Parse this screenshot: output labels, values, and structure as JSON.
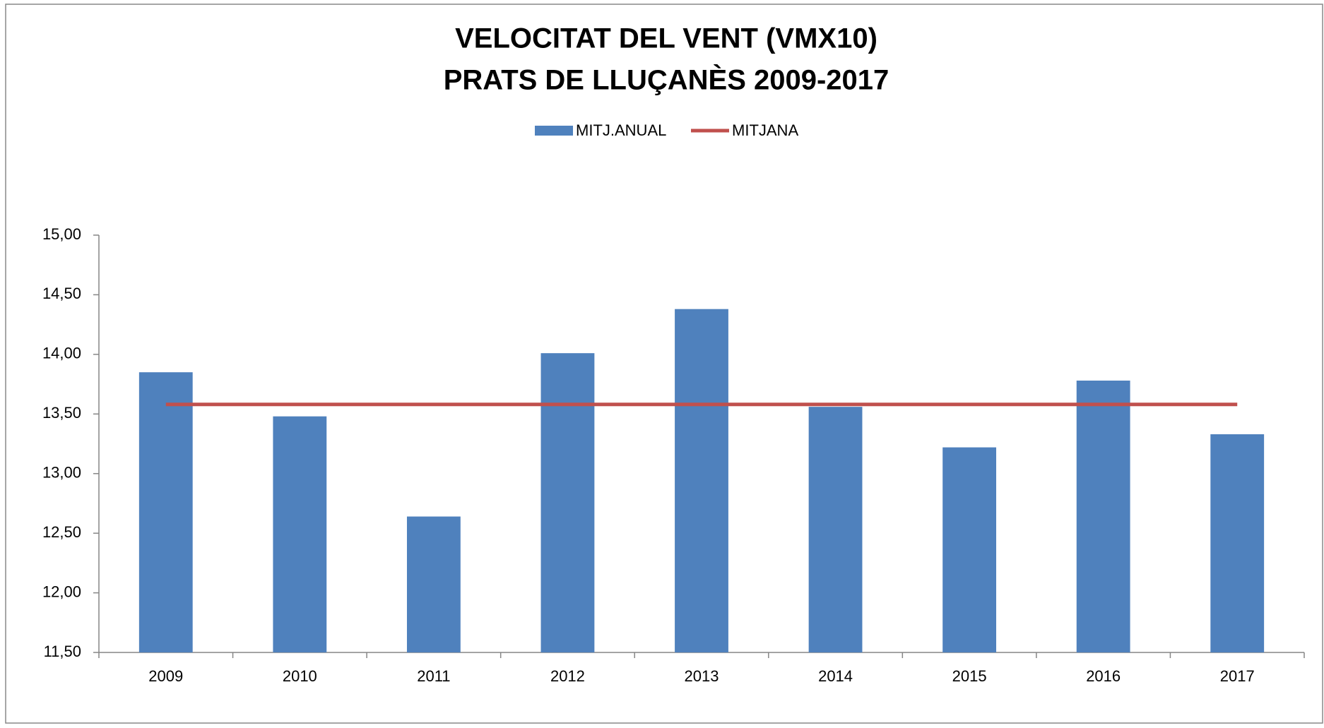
{
  "chart_data": {
    "type": "bar",
    "title": [
      "VELOCITAT DEL VENT (VMX10)",
      "PRATS DE LLUÇANÈS 2009-2017"
    ],
    "categories": [
      "2009",
      "2010",
      "2011",
      "2012",
      "2013",
      "2014",
      "2015",
      "2016",
      "2017"
    ],
    "series": [
      {
        "name": "MITJ.ANUAL",
        "type": "bar",
        "color": "#4f81bd",
        "values": [
          13.85,
          13.48,
          12.64,
          14.01,
          14.38,
          13.56,
          13.22,
          13.78,
          13.33
        ]
      },
      {
        "name": "MITJANA",
        "type": "line",
        "color": "#c0504d",
        "values": [
          13.58,
          13.58,
          13.58,
          13.58,
          13.58,
          13.58,
          13.58,
          13.58,
          13.58
        ]
      }
    ],
    "ylim": [
      11.5,
      15
    ],
    "yticks": [
      {
        "value": 11.5,
        "label": "11,50"
      },
      {
        "value": 12,
        "label": "12,00"
      },
      {
        "value": 12.5,
        "label": "12,50"
      },
      {
        "value": 13,
        "label": "13,00"
      },
      {
        "value": 13.5,
        "label": "13,50"
      },
      {
        "value": 14,
        "label": "14,00"
      },
      {
        "value": 14.5,
        "label": "14,50"
      },
      {
        "value": 15,
        "label": "15,00"
      }
    ],
    "grid": false,
    "legend": "top"
  }
}
